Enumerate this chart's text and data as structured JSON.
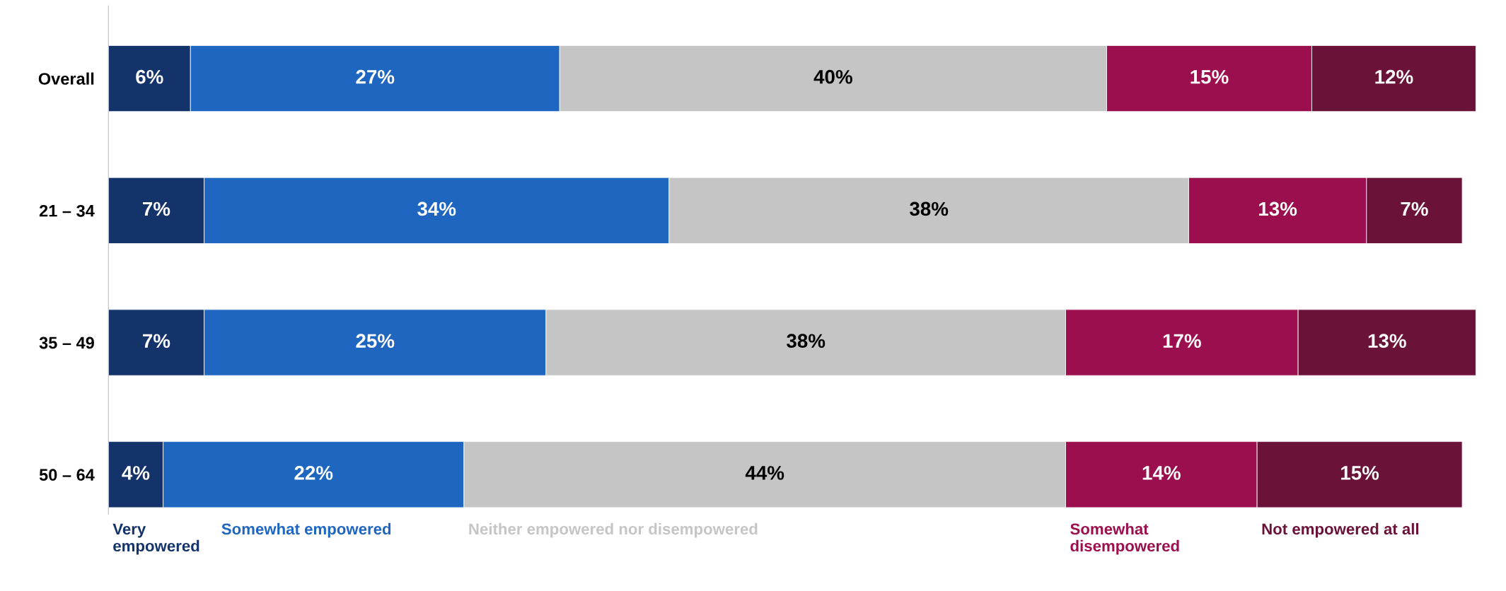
{
  "chart_data": {
    "type": "bar",
    "orientation": "horizontal",
    "stacked": true,
    "categories": [
      "Overall",
      "21 – 34",
      "35 – 49",
      "50 – 64"
    ],
    "series": [
      {
        "name": "Very empowered",
        "color": "#14336a",
        "values": [
          6,
          7,
          7,
          4
        ],
        "value_labels": [
          "6%",
          "7%",
          "7%",
          "4%"
        ]
      },
      {
        "name": "Somewhat empowered",
        "color": "#1f66c1",
        "values": [
          27,
          34,
          25,
          22
        ],
        "value_labels": [
          "27%",
          "34%",
          "25%",
          "22%"
        ]
      },
      {
        "name": "Neither empowered nor disempowered",
        "color": "#c5c5c5",
        "values": [
          40,
          38,
          38,
          44
        ],
        "value_labels": [
          "40%",
          "38%",
          "38%",
          "44%"
        ]
      },
      {
        "name": "Somewhat disempowered",
        "color": "#9c0f4e",
        "values": [
          15,
          13,
          17,
          14
        ],
        "value_labels": [
          "15%",
          "13%",
          "17%",
          "14%"
        ]
      },
      {
        "name": "Not empowered at all",
        "color": "#6a1238",
        "values": [
          12,
          7,
          13,
          15
        ],
        "value_labels": [
          "12%",
          "7%",
          "13%",
          "15%"
        ]
      }
    ],
    "tick_labels": "y",
    "legend": "bottom",
    "grid": false
  }
}
